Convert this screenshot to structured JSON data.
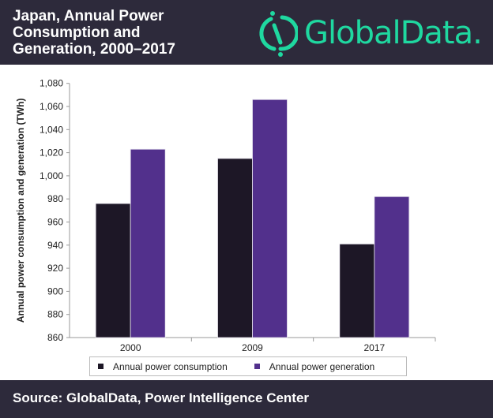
{
  "header": {
    "title": "Japan, Annual Power Consumption and Generation, 2000–2017",
    "logo_text": "GlobalData."
  },
  "footer": {
    "source": "Source: GlobalData, Power Intelligence Center"
  },
  "colors": {
    "header_bg": "#2d2a3b",
    "brand": "#1fd8a0",
    "consumption": "#1d1726",
    "generation": "#52308c"
  },
  "chart_data": {
    "type": "bar",
    "title": "",
    "categories": [
      "2000",
      "2009",
      "2017"
    ],
    "series": [
      {
        "name": "Annual power consumption",
        "values": [
          976,
          1015,
          941
        ],
        "color": "#1d1726"
      },
      {
        "name": "Annual power generation",
        "values": [
          1023,
          1066,
          982
        ],
        "color": "#52308c"
      }
    ],
    "xlabel": "",
    "ylabel": "Annual power consumption and generation (TWh)",
    "ylim": [
      860,
      1080
    ],
    "yticks": [
      "860",
      "880",
      "900",
      "920",
      "940",
      "960",
      "980",
      "1,000",
      "1,020",
      "1,040",
      "1,060",
      "1,080"
    ],
    "grid": false,
    "legend": "bottom"
  }
}
